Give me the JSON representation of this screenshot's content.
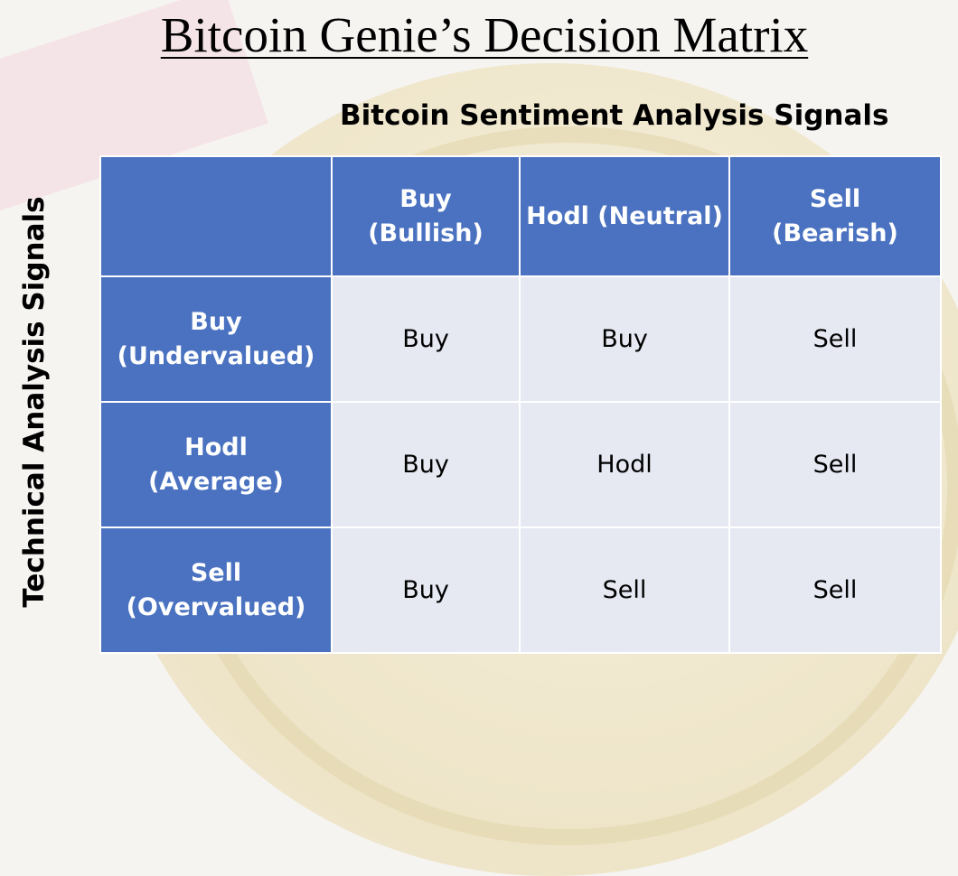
{
  "title": "Bitcoin Genie’s Decision Matrix",
  "column_axis_title": "Bitcoin Sentiment Analysis Signals",
  "row_axis_title": "Technical Analysis Signals",
  "columns": [
    {
      "line1": "Buy",
      "line2": "(Bullish)"
    },
    {
      "line1": "Hodl (Neutral)",
      "line2": ""
    },
    {
      "line1": "Sell",
      "line2": "(Bearish)"
    }
  ],
  "rows": [
    {
      "line1": "Buy",
      "line2": "(Undervalued)",
      "cells": [
        "Buy",
        "Buy",
        "Sell"
      ]
    },
    {
      "line1": "Hodl",
      "line2": "(Average)",
      "cells": [
        "Buy",
        "Hodl",
        "Sell"
      ]
    },
    {
      "line1": "Sell",
      "line2": "(Overvalued)",
      "cells": [
        "Buy",
        "Sell",
        "Sell"
      ]
    }
  ],
  "colors": {
    "header_fill": "#4a72c0",
    "cell_fill": "#e6e9f2",
    "header_text": "#ffffff",
    "cell_text": "#000000"
  }
}
